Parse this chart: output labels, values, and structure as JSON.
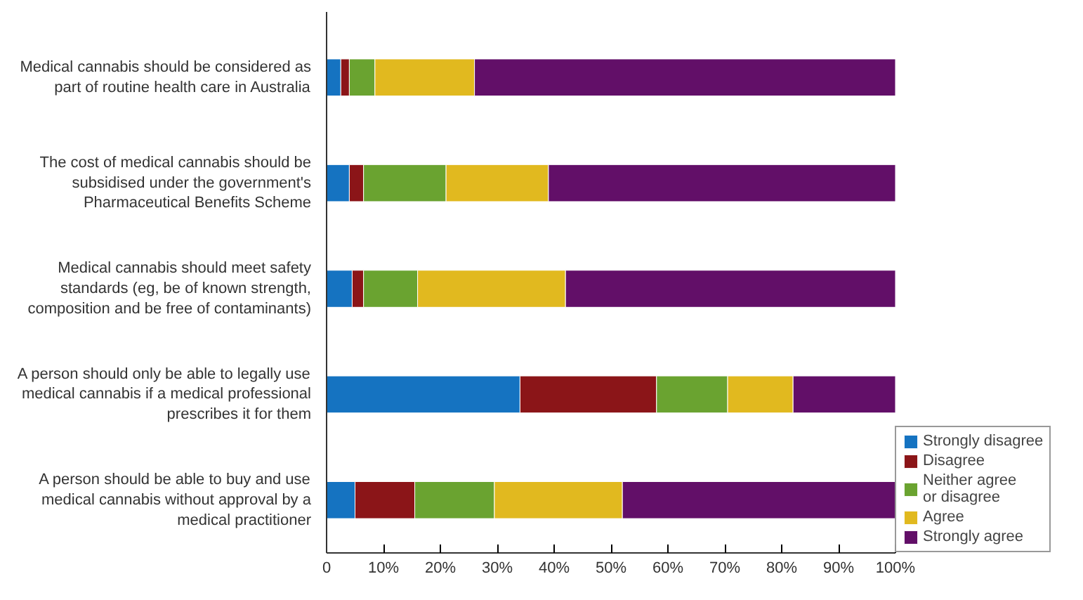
{
  "chart_data": {
    "type": "bar",
    "orientation": "horizontal",
    "stacked": true,
    "categories": [
      "Medical cannabis should be considered as\npart of routine health care in Australia",
      "The cost of medical cannabis should be\nsubsidised under the government's\nPharmaceutical Benefits Scheme",
      "Medical cannabis should meet safety\nstandards (eg, be of known strength,\ncomposition and be free of contaminants)",
      "A person should only be able to legally use\nmedical cannabis if a medical professional\nprescribes it for them",
      "A person should be able to buy and use\nmedical cannabis without approval by a\nmedical practitioner"
    ],
    "series": [
      {
        "name": "Strongly disagree",
        "color": "#1573c1",
        "values": [
          2.5,
          4,
          4.5,
          34,
          5
        ]
      },
      {
        "name": "Disagree",
        "color": "#8b1518",
        "values": [
          1.5,
          2.5,
          2,
          24,
          10.5
        ]
      },
      {
        "name": "Neither agree\nor disagree",
        "color": "#6aa330",
        "values": [
          4.5,
          14.5,
          9.5,
          12.5,
          14
        ]
      },
      {
        "name": "Agree",
        "color": "#e1b91f",
        "values": [
          17.5,
          18,
          26,
          11.5,
          22.5
        ]
      },
      {
        "name": "Strongly agree",
        "color": "#620f68",
        "values": [
          74,
          61,
          58,
          18,
          48
        ]
      }
    ],
    "xlim": [
      0,
      100
    ],
    "xticks": [
      {
        "value": 0,
        "label": "0"
      },
      {
        "value": 10,
        "label": "10%"
      },
      {
        "value": 20,
        "label": "20%"
      },
      {
        "value": 30,
        "label": "30%"
      },
      {
        "value": 40,
        "label": "40%"
      },
      {
        "value": 50,
        "label": "50%"
      },
      {
        "value": 60,
        "label": "60%"
      },
      {
        "value": 70,
        "label": "70%"
      },
      {
        "value": 80,
        "label": "80%"
      },
      {
        "value": 90,
        "label": "90%"
      },
      {
        "value": 100,
        "label": "100%"
      }
    ],
    "grid": false,
    "legend": "bottom right"
  }
}
